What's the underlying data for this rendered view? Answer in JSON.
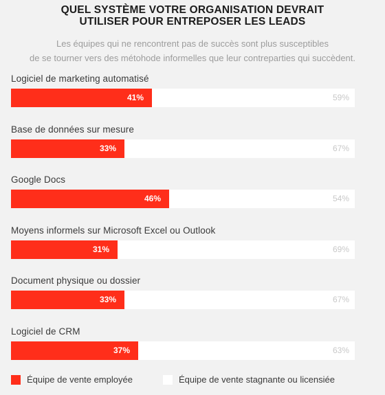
{
  "chart_data": {
    "type": "bar",
    "stacked": true,
    "orientation": "horizontal",
    "title_line1": "QUEL SYSTÈME VOTRE ORGANISATION DEVRAIT",
    "title_line2": "UTILISER POUR ENTREPOSER LES LEADS",
    "subtitle_line1": "Les équipes qui ne rencontrent pas de succès sont plus susceptibles",
    "subtitle_line2": "de se tourner vers des métohode informelles que leur contreparties qui  succèdent.",
    "categories": [
      "Logiciel de marketing automatisé",
      "Base de données sur mesure",
      "Google Docs",
      "Moyens informels sur Microsoft Excel ou Outlook",
      "Document physique ou dossier",
      "Logiciel de CRM"
    ],
    "series": [
      {
        "name": "Équipe de vente employée",
        "color": "#ff2e1a",
        "values": [
          41,
          33,
          46,
          31,
          33,
          37
        ],
        "labels": [
          "41%",
          "33%",
          "46%",
          "31%",
          "33%",
          "37%"
        ]
      },
      {
        "name": "Équipe de vente stagnante ou licensiée",
        "color": "#ffffff",
        "values": [
          59,
          67,
          54,
          69,
          67,
          63
        ],
        "labels": [
          "59%",
          "67%",
          "54%",
          "69%",
          "67%",
          "63%"
        ]
      }
    ],
    "xlim": [
      0,
      100
    ],
    "legend_position": "bottom-left",
    "grid": false
  }
}
